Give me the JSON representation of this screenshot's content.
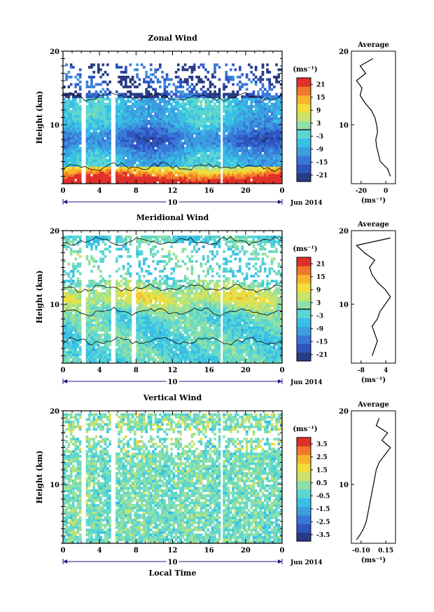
{
  "figure": {
    "panels": [
      {
        "title": "Zonal Wind",
        "ylabel": "Height (km)",
        "x_ticks": [
          "0",
          "4",
          "8",
          "12",
          "16",
          "20",
          "0"
        ],
        "y_ticks": [
          "20",
          "10"
        ],
        "day_label": "10",
        "month_label": "Jun 2014",
        "cbar_unit": "(ms⁻¹)",
        "cbar_ticks": [
          "21",
          "15",
          "9",
          "3",
          "-3",
          "-9",
          "-15",
          "-21"
        ],
        "avg_title": "Average",
        "avg_unit": "(ms⁻¹)",
        "avg_x_ticks": [
          "-20",
          "0"
        ],
        "avg_y_ticks": [
          "20",
          "10"
        ]
      },
      {
        "title": "Meridional Wind",
        "ylabel": "Height (km)",
        "x_ticks": [
          "0",
          "4",
          "8",
          "12",
          "16",
          "20",
          "0"
        ],
        "y_ticks": [
          "20",
          "10"
        ],
        "day_label": "10",
        "month_label": "Jun 2014",
        "cbar_unit": "(ms⁻¹)",
        "cbar_ticks": [
          "21",
          "15",
          "9",
          "3",
          "-3",
          "-9",
          "-15",
          "-21"
        ],
        "avg_title": "Average",
        "avg_unit": "(ms⁻¹)",
        "avg_x_ticks": [
          "-8",
          "4"
        ],
        "avg_y_ticks": [
          "20",
          "10"
        ]
      },
      {
        "title": "Vertical Wind",
        "ylabel": "Height (km)",
        "x_ticks": [
          "0",
          "4",
          "8",
          "12",
          "16",
          "20",
          "0"
        ],
        "y_ticks": [
          "20",
          "10"
        ],
        "day_label": "10",
        "month_label": "Jun 2014",
        "xlabel": "Local Time",
        "cbar_unit": "(ms⁻¹)",
        "cbar_ticks": [
          "3.5",
          "2.5",
          "1.5",
          "0.5",
          "-0.5",
          "-1.5",
          "-2.5",
          "-3.5"
        ],
        "avg_title": "Average",
        "avg_unit": "(ms⁻¹)",
        "avg_x_ticks": [
          "-0.10",
          "0.15"
        ],
        "avg_y_ticks": [
          "20",
          "10"
        ]
      }
    ]
  },
  "chart_data": [
    {
      "type": "heatmap",
      "title": "Zonal Wind",
      "xlabel": "",
      "ylabel": "Height (km)",
      "xlim": [
        0,
        24
      ],
      "ylim": [
        2,
        20
      ],
      "colorbar": {
        "unit": "(ms⁻¹)",
        "range": [
          -24,
          24
        ],
        "ticks": [
          21,
          15,
          9,
          3,
          -3,
          -9,
          -15,
          -21
        ]
      },
      "contour_levels": [
        0
      ],
      "data_gaps_local_time": [
        [
          1.9,
          2.6
        ],
        [
          5.2,
          5.8
        ],
        [
          17.3,
          17.6
        ]
      ],
      "profile": {
        "height": [
          3,
          4,
          5,
          6,
          7,
          8,
          9,
          10,
          11,
          12,
          13,
          14,
          15,
          16,
          17,
          18,
          19
        ],
        "value": [
          9,
          6,
          -2,
          -4,
          -6,
          -7,
          -5,
          -6,
          -8,
          -12,
          -19,
          -24,
          -22,
          -28,
          -18,
          -24,
          -10
        ]
      }
    },
    {
      "type": "heatmap",
      "title": "Meridional Wind",
      "xlabel": "",
      "ylabel": "Height (km)",
      "xlim": [
        0,
        24
      ],
      "ylim": [
        2,
        20
      ],
      "colorbar": {
        "unit": "(ms⁻¹)",
        "range": [
          -24,
          24
        ],
        "ticks": [
          21,
          15,
          9,
          3,
          -3,
          -9,
          -15,
          -21
        ]
      },
      "contour_levels": [
        0
      ],
      "data_gaps_local_time": [
        [
          1.9,
          2.6
        ],
        [
          5.2,
          5.8
        ],
        [
          7.6,
          7.9
        ],
        [
          17.3,
          17.6
        ]
      ],
      "profile": {
        "height": [
          3,
          4,
          5,
          6,
          7,
          8,
          9,
          10,
          11,
          12,
          13,
          14,
          15,
          16,
          17,
          18,
          19
        ],
        "value": [
          -3,
          -2,
          -1,
          -2,
          -3,
          -1,
          0,
          2,
          4,
          2,
          -1,
          -3,
          -4,
          -2,
          -6,
          -9,
          4
        ]
      }
    },
    {
      "type": "heatmap",
      "title": "Vertical Wind",
      "xlabel": "Local Time",
      "ylabel": "Height (km)",
      "xlim": [
        0,
        24
      ],
      "ylim": [
        2,
        20
      ],
      "colorbar": {
        "unit": "(ms⁻¹)",
        "range": [
          -4,
          4
        ],
        "ticks": [
          3.5,
          2.5,
          1.5,
          0.5,
          -0.5,
          -1.5,
          -2.5,
          -3.5
        ]
      },
      "data_gaps_local_time": [
        [
          1.9,
          2.6
        ],
        [
          5.2,
          5.8
        ],
        [
          17.3,
          17.6
        ]
      ],
      "profile": {
        "height": [
          2.5,
          3,
          4,
          5,
          6,
          7,
          8,
          9,
          10,
          11,
          12,
          13,
          14,
          15,
          16,
          17,
          18,
          19
        ],
        "value": [
          -0.1,
          -0.08,
          -0.05,
          -0.03,
          -0.02,
          -0.01,
          0,
          0.01,
          0.02,
          0.03,
          0.04,
          0.06,
          0.1,
          0.14,
          0.08,
          0.12,
          0.04,
          0.06
        ]
      }
    }
  ]
}
